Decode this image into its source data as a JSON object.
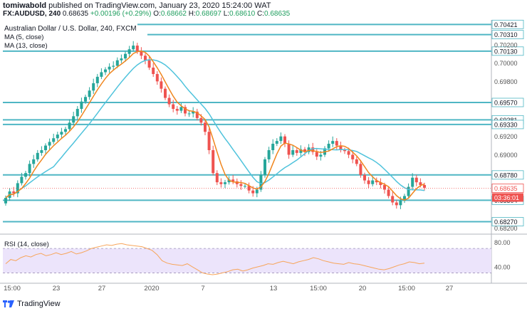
{
  "header": {
    "author": "tomiwabold",
    "published_text": "published on TradingView.com, January 23, 2020 15:24:00 WAT",
    "symbol": "FX:AUDUSD, 240",
    "last": "0.68635",
    "change": "+0.00196 (+0.29%)",
    "o_label": "O:",
    "o_value": "0.68662",
    "h_label": "H:",
    "h_value": "0.68697",
    "l_label": "L:",
    "l_value": "0.68610",
    "c_label": "C:",
    "c_value": "0.68635"
  },
  "footer": {
    "brand": "TradingView"
  },
  "chart_data": [
    {
      "type": "candlestick",
      "title": "Australian Dollar / U.S. Dollar, 240, FXCM",
      "legend": [
        "MA (5, close)",
        "MA (13, close)"
      ],
      "ylim": [
        0.6815,
        0.7047
      ],
      "y_ticks": [
        "0.70200",
        "0.70000",
        "0.69800",
        "0.69200",
        "0.69000",
        "0.68200"
      ],
      "x_ticks": [
        "15:00",
        "23",
        "27",
        "2020",
        "7",
        "13",
        "15:00",
        "20",
        "15:00",
        "27"
      ],
      "horizontal_levels": [
        "0.70421",
        "0.70310",
        "0.70130",
        "0.69570",
        "0.69381",
        "0.69330",
        "0.68780",
        "0.68504",
        "0.68270"
      ],
      "price_label": "0.68635",
      "countdown_label": "03:36:01",
      "close_series": [
        0.6853,
        0.686,
        0.6858,
        0.6869,
        0.6876,
        0.688,
        0.689,
        0.6895,
        0.6902,
        0.6905,
        0.691,
        0.6914,
        0.6918,
        0.6922,
        0.6925,
        0.6928,
        0.6935,
        0.6942,
        0.695,
        0.6958,
        0.6963,
        0.697,
        0.6978,
        0.6985,
        0.699,
        0.6993,
        0.6996,
        0.6997,
        0.7003,
        0.7005,
        0.701,
        0.7015,
        0.7019,
        0.7013,
        0.7008,
        0.7003,
        0.6995,
        0.6988,
        0.698,
        0.6972,
        0.6962,
        0.6955,
        0.695,
        0.6948,
        0.6952,
        0.6945,
        0.6945,
        0.6947,
        0.694,
        0.6935,
        0.6925,
        0.6905,
        0.688,
        0.687,
        0.6868,
        0.687,
        0.6873,
        0.6871,
        0.6868,
        0.6866,
        0.6866,
        0.6861,
        0.6858,
        0.6862,
        0.6878,
        0.6895,
        0.6905,
        0.6912,
        0.6915,
        0.692,
        0.6912,
        0.69,
        0.6905,
        0.6902,
        0.6906,
        0.6903,
        0.6908,
        0.6903,
        0.6898,
        0.69,
        0.6907,
        0.6912,
        0.6915,
        0.691,
        0.6905,
        0.6904,
        0.69,
        0.6895,
        0.689,
        0.6878,
        0.6872,
        0.6868,
        0.6872,
        0.687,
        0.6867,
        0.6862,
        0.6855,
        0.6848,
        0.6845,
        0.685,
        0.6855,
        0.6865,
        0.6875,
        0.687,
        0.6867,
        0.6864
      ]
    },
    {
      "type": "line",
      "title": "RSI (14, close)",
      "ylim": [
        20,
        90
      ],
      "y_ticks": [
        "80.00",
        "40.00"
      ],
      "band": [
        30,
        70
      ],
      "series": [
        {
          "name": "RSI (14, close)",
          "values": [
            45,
            52,
            50,
            55,
            58,
            56,
            60,
            62,
            58,
            60,
            63,
            60,
            62,
            65,
            61,
            63,
            66,
            70,
            72,
            74,
            76,
            75,
            77,
            78,
            76,
            75,
            74,
            73,
            70,
            67,
            60,
            50,
            46,
            44,
            43,
            42,
            45,
            40,
            35,
            30,
            28,
            27,
            28,
            30,
            32,
            35,
            36,
            33,
            35,
            38,
            40,
            42,
            45,
            44,
            47,
            49,
            47,
            45,
            48,
            50,
            52,
            55,
            53,
            50,
            48,
            46,
            45,
            44,
            47,
            45,
            44,
            42,
            40,
            38,
            36,
            35,
            37,
            40,
            43,
            45,
            48,
            47,
            45,
            46
          ]
        }
      ]
    }
  ]
}
